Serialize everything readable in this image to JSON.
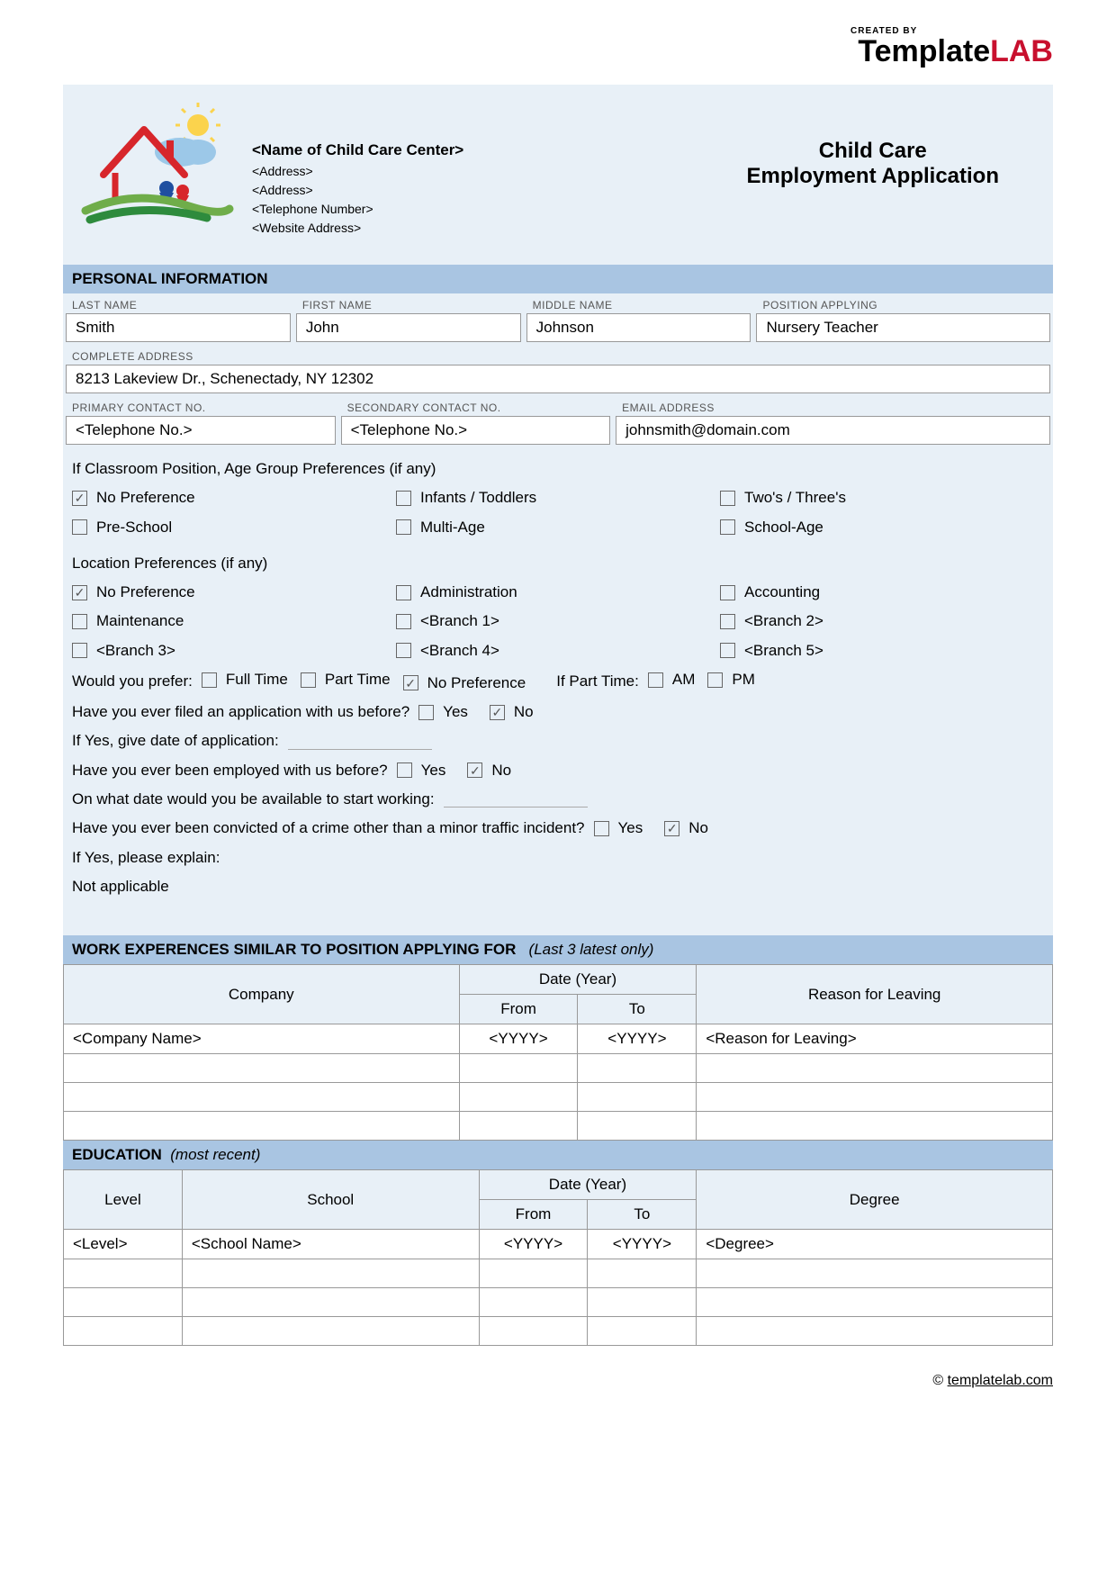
{
  "brand": {
    "created_by": "CREATED BY",
    "name_part1": "Template",
    "name_part2": "LAB"
  },
  "header": {
    "center_name": "<Name of Child Care Center>",
    "address1": "<Address>",
    "address2": "<Address>",
    "phone": "<Telephone Number>",
    "website": "<Website Address>",
    "title_line1": "Child Care",
    "title_line2": "Employment Application"
  },
  "sections": {
    "personal": "PERSONAL INFORMATION",
    "work": "WORK EXPERENCES SIMILAR TO POSITION APPLYING FOR",
    "work_sub": "(Last 3 latest only)",
    "education": "EDUCATION",
    "education_sub": "(most recent)"
  },
  "labels": {
    "last_name": "LAST NAME",
    "first_name": "FIRST NAME",
    "middle_name": "MIDDLE NAME",
    "position": "POSITION APPLYING",
    "address": "COMPLETE ADDRESS",
    "primary": "PRIMARY CONTACT NO.",
    "secondary": "SECONDARY CONTACT NO.",
    "email": "EMAIL ADDRESS"
  },
  "personal": {
    "last_name": "Smith",
    "first_name": "John",
    "middle_name": "Johnson",
    "position": "Nursery Teacher",
    "address": "8213 Lakeview Dr., Schenectady, NY 12302",
    "primary": "<Telephone No.>",
    "secondary": "<Telephone No.>",
    "email": "johnsmith@domain.com"
  },
  "age_group": {
    "question": "If Classroom Position, Age Group Preferences (if any)",
    "options": [
      {
        "label": "No Preference",
        "checked": true
      },
      {
        "label": "Infants / Toddlers",
        "checked": false
      },
      {
        "label": "Two's / Three's",
        "checked": false
      },
      {
        "label": "Pre-School",
        "checked": false
      },
      {
        "label": "Multi-Age",
        "checked": false
      },
      {
        "label": "School-Age",
        "checked": false
      }
    ]
  },
  "location": {
    "question": "Location Preferences (if any)",
    "options": [
      {
        "label": "No Preference",
        "checked": true
      },
      {
        "label": "Administration",
        "checked": false
      },
      {
        "label": "Accounting",
        "checked": false
      },
      {
        "label": "Maintenance",
        "checked": false
      },
      {
        "label": "<Branch 1>",
        "checked": false
      },
      {
        "label": "<Branch 2>",
        "checked": false
      },
      {
        "label": "<Branch 3>",
        "checked": false
      },
      {
        "label": "<Branch 4>",
        "checked": false
      },
      {
        "label": "<Branch 5>",
        "checked": false
      }
    ]
  },
  "prefer": {
    "label": "Would you prefer:",
    "options": [
      {
        "label": "Full Time",
        "checked": false
      },
      {
        "label": "Part Time",
        "checked": false
      },
      {
        "label": "No Preference",
        "checked": true
      }
    ],
    "part_time_label": "If Part Time:",
    "part_time_options": [
      {
        "label": "AM",
        "checked": false
      },
      {
        "label": "PM",
        "checked": false
      }
    ]
  },
  "questions": {
    "filed_before": "Have you ever filed an application with us before?",
    "filed_yes": false,
    "filed_no": true,
    "filed_date_label": "If Yes, give date of application:",
    "employed_before": "Have you ever been employed with us before?",
    "employed_yes": false,
    "employed_no": true,
    "start_date": "On what date would you be available to start working:",
    "convicted": "Have you ever been convicted of a crime other than a minor traffic incident?",
    "convicted_yes": false,
    "convicted_no": true,
    "explain_label": "If Yes, please explain:",
    "explain_value": "Not applicable",
    "yes": "Yes",
    "no": "No"
  },
  "work_table": {
    "headers": {
      "company": "Company",
      "date": "Date (Year)",
      "from": "From",
      "to": "To",
      "reason": "Reason for Leaving"
    },
    "rows": [
      {
        "company": "<Company Name>",
        "from": "<YYYY>",
        "to": "<YYYY>",
        "reason": "<Reason for Leaving>"
      },
      {
        "company": "",
        "from": "",
        "to": "",
        "reason": ""
      },
      {
        "company": "",
        "from": "",
        "to": "",
        "reason": ""
      },
      {
        "company": "",
        "from": "",
        "to": "",
        "reason": ""
      }
    ]
  },
  "education_table": {
    "headers": {
      "level": "Level",
      "school": "School",
      "date": "Date (Year)",
      "from": "From",
      "to": "To",
      "degree": "Degree"
    },
    "rows": [
      {
        "level": "<Level>",
        "school": "<School Name>",
        "from": "<YYYY>",
        "to": "<YYYY>",
        "degree": "<Degree>"
      },
      {
        "level": "",
        "school": "",
        "from": "",
        "to": "",
        "degree": ""
      },
      {
        "level": "",
        "school": "",
        "from": "",
        "to": "",
        "degree": ""
      },
      {
        "level": "",
        "school": "",
        "from": "",
        "to": "",
        "degree": ""
      }
    ]
  },
  "footer": {
    "copyright": "©",
    "link": "templatelab.com"
  },
  "colors": {
    "page_bg": "#e8f0f7",
    "section_header": "#a9c5e2",
    "border": "#999999",
    "brand_accent": "#c8102e"
  }
}
